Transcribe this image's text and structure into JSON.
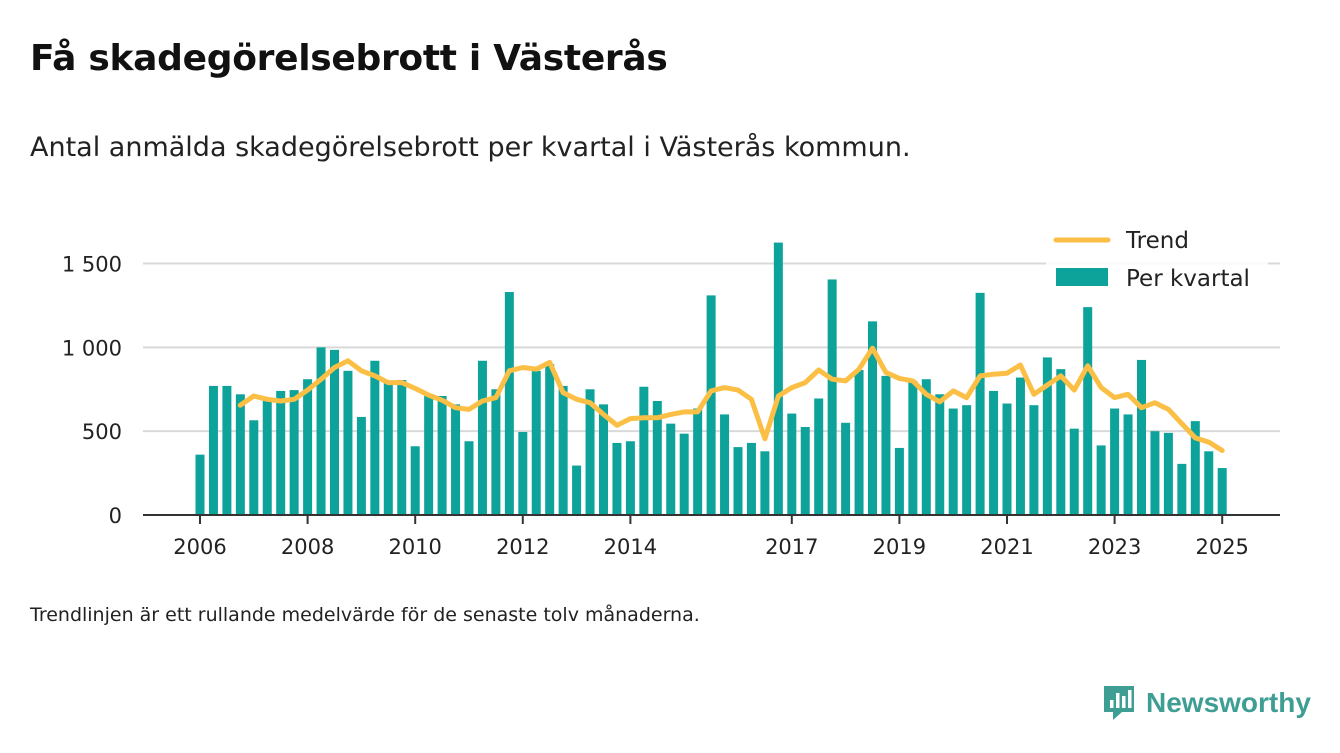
{
  "title": "Få skadegörelsebrott i Västerås",
  "subtitle": "Antal anmälda skadegörelsebrott per kvartal i Västerås kommun.",
  "footnote": "Trendlinjen är ett rullande medelvärde för de senaste tolv månaderna.",
  "brand": {
    "name": "Newsworthy",
    "icon": "newsworthy-logo-icon",
    "color": "#3f9e94"
  },
  "colors": {
    "bars": "#0ea39a",
    "trend": "#fbbf45",
    "grid": "#d9d9d9",
    "axis": "#333333"
  },
  "chart_data": {
    "type": "bar",
    "grid": true,
    "legend_position": "top-right",
    "ylim": [
      0,
      1700
    ],
    "y_ticks": [
      0,
      500,
      1000,
      1500
    ],
    "y_tick_labels": [
      "0",
      "500",
      "1 000",
      "1 500"
    ],
    "x_ticks": [
      2006,
      2008,
      2010,
      2012,
      2014,
      2017,
      2019,
      2021,
      2023,
      2025
    ],
    "x_tick_labels": [
      "2006",
      "2008",
      "2010",
      "2012",
      "2014",
      "2017",
      "2019",
      "2021",
      "2023",
      "2025"
    ],
    "x_start": 2006.0,
    "x_step": 0.25,
    "series": [
      {
        "name": "Per kvartal",
        "type": "bar",
        "values": [
          360,
          770,
          770,
          720,
          565,
          690,
          740,
          745,
          810,
          1000,
          985,
          860,
          585,
          920,
          800,
          805,
          410,
          715,
          710,
          660,
          440,
          920,
          750,
          1330,
          495,
          860,
          900,
          770,
          295,
          750,
          660,
          430,
          440,
          765,
          680,
          545,
          485,
          635,
          1310,
          600,
          405,
          430,
          380,
          1625,
          605,
          525,
          695,
          1405,
          550,
          865,
          1155,
          830,
          400,
          800,
          810,
          720,
          635,
          655,
          1325,
          740,
          665,
          820,
          655,
          940,
          870,
          515,
          1240,
          415,
          635,
          600,
          925,
          500,
          490,
          305,
          560,
          380,
          280
        ]
      },
      {
        "name": "Trend",
        "type": "line",
        "values": [
          null,
          null,
          null,
          655,
          710,
          690,
          680,
          690,
          745,
          810,
          880,
          920,
          860,
          830,
          790,
          790,
          755,
          715,
          685,
          640,
          630,
          680,
          700,
          860,
          880,
          870,
          910,
          730,
          690,
          670,
          600,
          535,
          575,
          580,
          580,
          600,
          615,
          615,
          740,
          760,
          745,
          690,
          455,
          710,
          760,
          790,
          865,
          810,
          800,
          870,
          995,
          850,
          815,
          800,
          720,
          675,
          740,
          700,
          830,
          840,
          845,
          895,
          720,
          775,
          830,
          745,
          890,
          760,
          700,
          720,
          640,
          670,
          630,
          545,
          460,
          435,
          385
        ]
      }
    ]
  }
}
